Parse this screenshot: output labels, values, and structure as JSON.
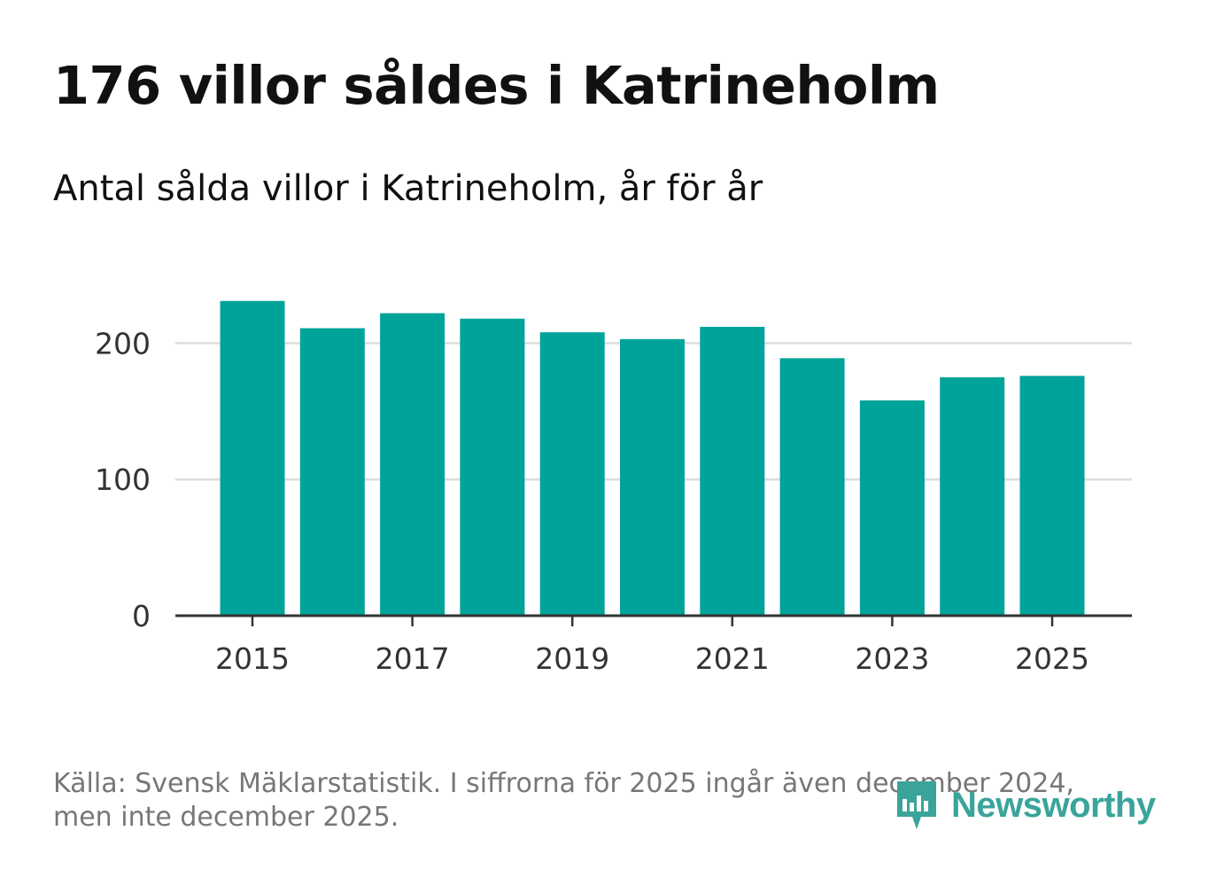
{
  "title": "176 villor såldes i Katrineholm",
  "subtitle": "Antal sålda villor i Katrineholm, år för år",
  "source": "Källa: Svensk Mäklarstatistik. I siffrorna för 2025 ingår även december 2024, men inte december 2025.",
  "brand": {
    "name": "Newsworthy",
    "icon": "newsworthy-logo-icon",
    "color": "#3aa49a"
  },
  "colors": {
    "bar": "#00a39a",
    "grid": "#dddddd",
    "axis": "#333333"
  },
  "chart_data": {
    "type": "bar",
    "categories": [
      "2015",
      "2016",
      "2017",
      "2018",
      "2019",
      "2020",
      "2021",
      "2022",
      "2023",
      "2024",
      "2025"
    ],
    "values": [
      231,
      211,
      222,
      218,
      208,
      203,
      212,
      189,
      158,
      175,
      176
    ],
    "title": "176 villor såldes i Katrineholm",
    "subtitle": "Antal sålda villor i Katrineholm, år för år",
    "xlabel": "",
    "ylabel": "",
    "ylim": [
      0,
      240
    ],
    "yticks": [
      "0",
      "100",
      "200"
    ],
    "xticks": [
      "2015",
      "2017",
      "2019",
      "2021",
      "2023",
      "2025"
    ],
    "grid": true,
    "legend": "none"
  }
}
